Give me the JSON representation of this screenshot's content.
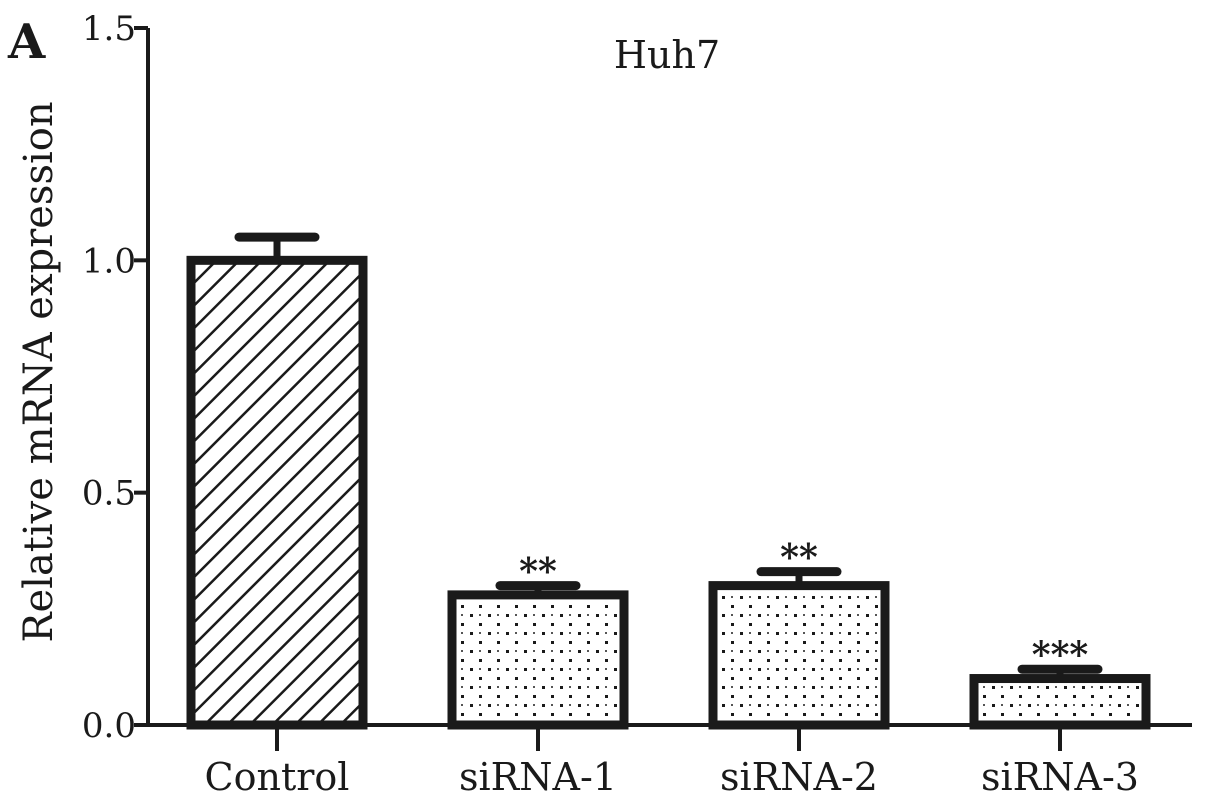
{
  "panel_label": "A",
  "chart_data": {
    "type": "bar",
    "title": "Huh7",
    "xlabel": "",
    "ylabel": "Relative mRNA expression",
    "ylim": [
      0,
      1.5
    ],
    "yticks": [
      "0.0",
      "0.5",
      "1.0",
      "1.5"
    ],
    "categories": [
      "Control",
      "siRNA-1",
      "siRNA-2",
      "siRNA-3"
    ],
    "values": [
      1.0,
      0.28,
      0.3,
      0.1
    ],
    "errors": [
      0.05,
      0.02,
      0.03,
      0.02
    ],
    "significance": [
      "",
      "**",
      "**",
      "***"
    ],
    "fill_patterns": [
      "diagonal-hatch",
      "dots",
      "dots",
      "dots"
    ],
    "grid": false,
    "colors": {
      "stroke": "#1a1a1a",
      "fill": "#ffffff"
    }
  }
}
